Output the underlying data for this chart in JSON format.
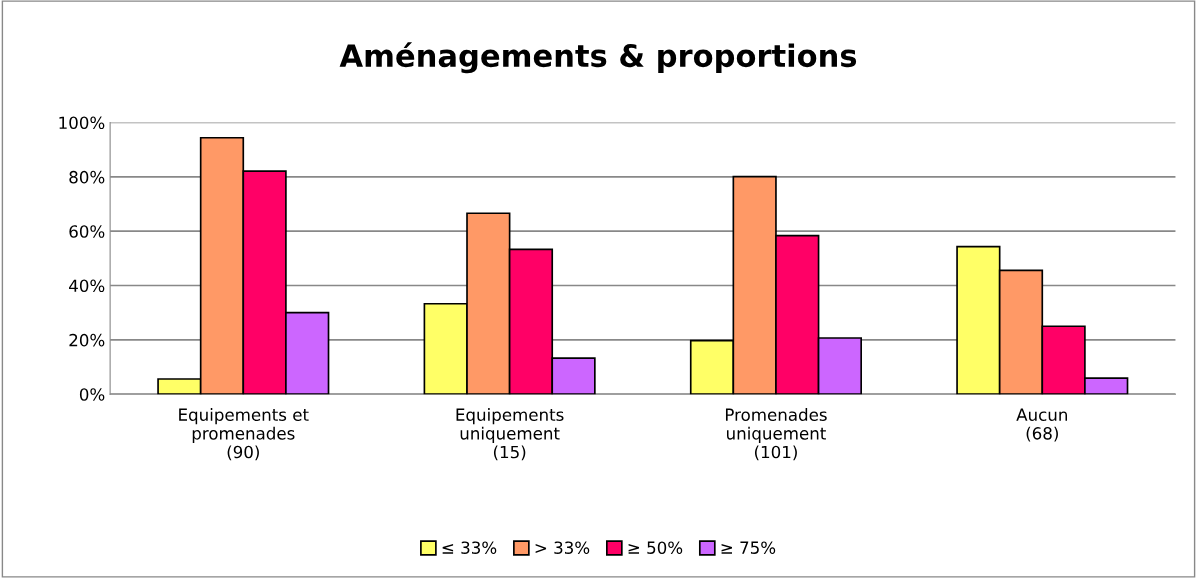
{
  "chart_data": {
    "type": "bar",
    "title": "Aménagements & proportions",
    "categories": [
      "Equipements et\npromenades\n(90)",
      "Equipements\nuniquement\n(15)",
      "Promenades\nuniquement\n(101)",
      "Aucun\n(68)"
    ],
    "series": [
      {
        "name": "≤ 33%",
        "color": "#ffff66",
        "values": [
          5.6,
          33.3,
          19.7,
          54.3
        ]
      },
      {
        "name": "> 33%",
        "color": "#ff9966",
        "values": [
          94.4,
          66.6,
          80.1,
          45.6
        ]
      },
      {
        "name": "≥ 50%",
        "color": "#ff0066",
        "values": [
          82.1,
          53.3,
          58.4,
          25.0
        ]
      },
      {
        "name": "≥ 75%",
        "color": "#cc66ff",
        "values": [
          30.0,
          13.3,
          20.7,
          5.9
        ]
      }
    ],
    "ylim": [
      0,
      100
    ],
    "yticks": [
      {
        "value": 0,
        "label": "0%"
      },
      {
        "value": 20,
        "label": "20%"
      },
      {
        "value": 40,
        "label": "40%"
      },
      {
        "value": 60,
        "label": "60%"
      },
      {
        "value": 80,
        "label": "80%"
      },
      {
        "value": 100,
        "label": "100%"
      }
    ],
    "grid": "y",
    "legend": "bottom"
  }
}
